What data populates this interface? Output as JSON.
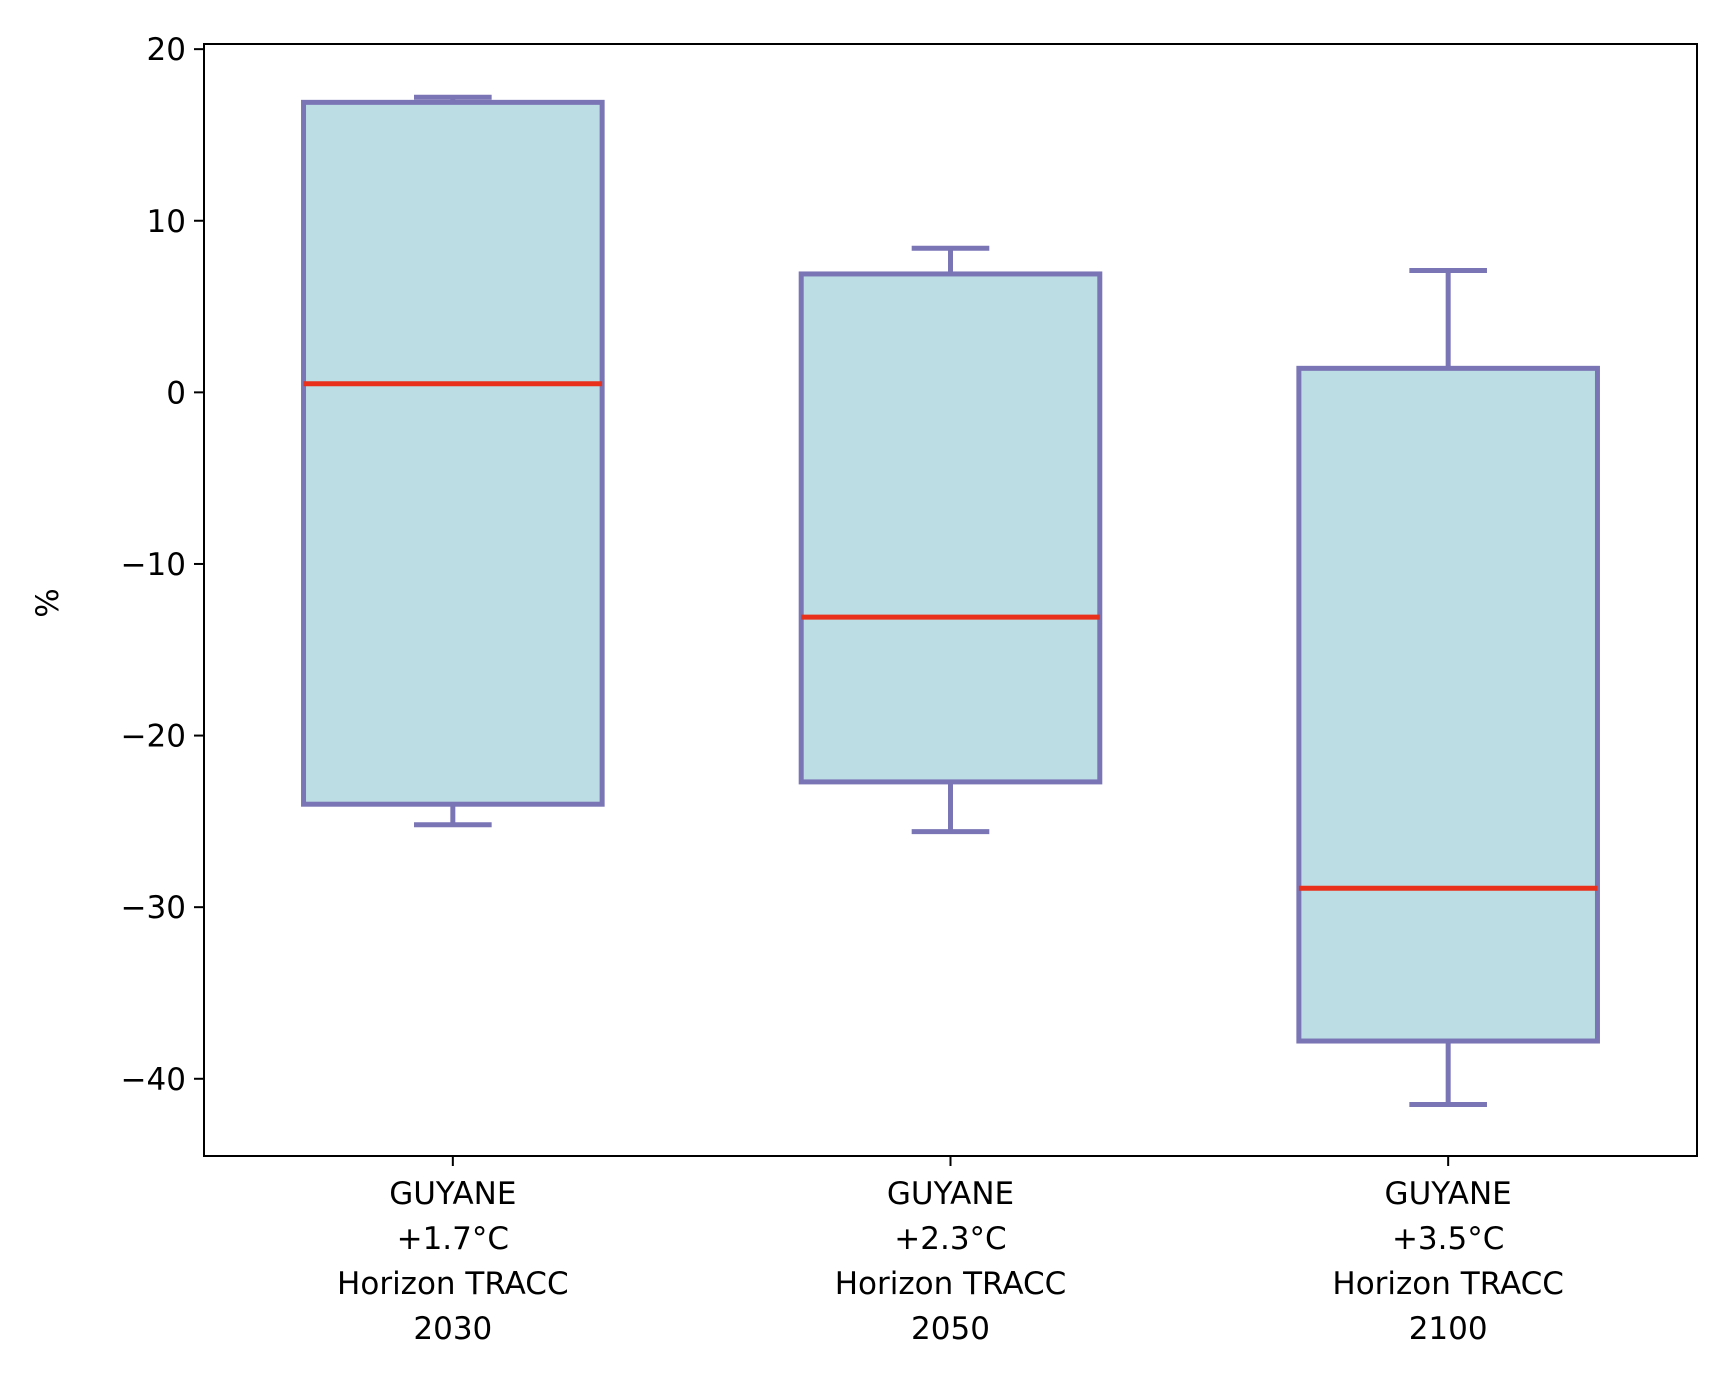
{
  "chart_data": {
    "type": "box",
    "title": "",
    "xlabel": "",
    "ylabel": "%",
    "ylim": [
      -44.5,
      20.3
    ],
    "yticks": [
      20,
      10,
      0,
      -10,
      -20,
      -30,
      -40
    ],
    "ytick_labels": [
      "20",
      "10",
      "0",
      "−10",
      "−20",
      "−30",
      "−40"
    ],
    "categories": [
      [
        "GUYANE",
        "+1.7°C",
        "Horizon TRACC",
        "2030"
      ],
      [
        "GUYANE",
        "+2.3°C",
        "Horizon TRACC",
        "2050"
      ],
      [
        "GUYANE",
        "+3.5°C",
        "Horizon TRACC",
        "2100"
      ]
    ],
    "boxes": [
      {
        "whisker_low": -25.2,
        "q1": -24.0,
        "median": 0.5,
        "q3": 16.9,
        "whisker_high": 17.2
      },
      {
        "whisker_low": -25.6,
        "q1": -22.7,
        "median": -13.1,
        "q3": 6.9,
        "whisker_high": 8.4
      },
      {
        "whisker_low": -41.5,
        "q1": -37.8,
        "median": -28.9,
        "q3": 1.4,
        "whisker_high": 7.1
      }
    ],
    "colors": {
      "box_fill": "#bbdde3",
      "box_edge": "#7a75b5",
      "median": "#e8301a",
      "axis": "#000000"
    }
  }
}
